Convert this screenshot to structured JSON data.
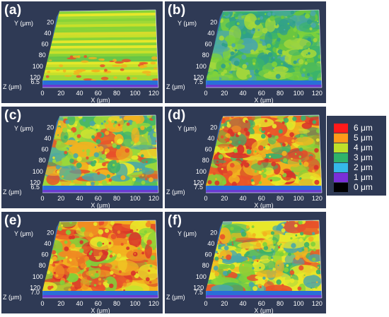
{
  "panels": [
    {
      "id": "a",
      "label": "(a)",
      "z_tick": "6.5",
      "surface": "stripes",
      "colors": [
        "#c8e02a",
        "#7fd23a",
        "#e8e82a",
        "#5cc24a",
        "#d6dc2c",
        "#9ad83a"
      ]
    },
    {
      "id": "b",
      "label": "(b)",
      "z_tick": "7.5",
      "surface": "green",
      "colors": [
        "#3bb36a",
        "#7fd23a",
        "#4aa7a8",
        "#a6d83a",
        "#2fa08a",
        "#6cc63e"
      ]
    },
    {
      "id": "c",
      "label": "(c)",
      "z_tick": "6.5",
      "surface": "mixed",
      "colors": [
        "#9ad83a",
        "#f2b21f",
        "#3bb36a",
        "#e8e82a",
        "#e8502a",
        "#4aa7a8"
      ]
    },
    {
      "id": "d",
      "label": "(d)",
      "z_tick": "7.5",
      "surface": "mixed",
      "colors": [
        "#f2b21f",
        "#e8502a",
        "#3bb36a",
        "#e8e82a",
        "#d8322a",
        "#7fd23a"
      ]
    },
    {
      "id": "e",
      "label": "(e)",
      "z_tick": "7.0",
      "surface": "warm",
      "colors": [
        "#f2b21f",
        "#e8502a",
        "#e8e82a",
        "#7fd23a",
        "#f08a22",
        "#d8322a"
      ]
    },
    {
      "id": "f",
      "label": "(f)",
      "z_tick": "7.5",
      "surface": "mixed2",
      "colors": [
        "#e8e82a",
        "#3bb36a",
        "#f2b21f",
        "#7fd23a",
        "#e8502a",
        "#4aa7a8"
      ]
    }
  ],
  "axes": {
    "x_label": "X (μm)",
    "y_label": "Y (μm)",
    "z_label": "Z (μm)",
    "x_ticks": [
      "0",
      "20",
      "40",
      "60",
      "80",
      "100",
      "120"
    ],
    "y_ticks": [
      "20",
      "40",
      "60",
      "80",
      "100",
      "120"
    ]
  },
  "legend": [
    {
      "label": "6 μm",
      "color": "#ff1a1a"
    },
    {
      "label": "5 μm",
      "color": "#ff9a1a"
    },
    {
      "label": "4 μm",
      "color": "#bfe02a"
    },
    {
      "label": "3 μm",
      "color": "#2fb36a"
    },
    {
      "label": "2 μm",
      "color": "#35b8e8"
    },
    {
      "label": "1 μm",
      "color": "#7a2fd8"
    },
    {
      "label": "0 μm",
      "color": "#000000"
    }
  ]
}
